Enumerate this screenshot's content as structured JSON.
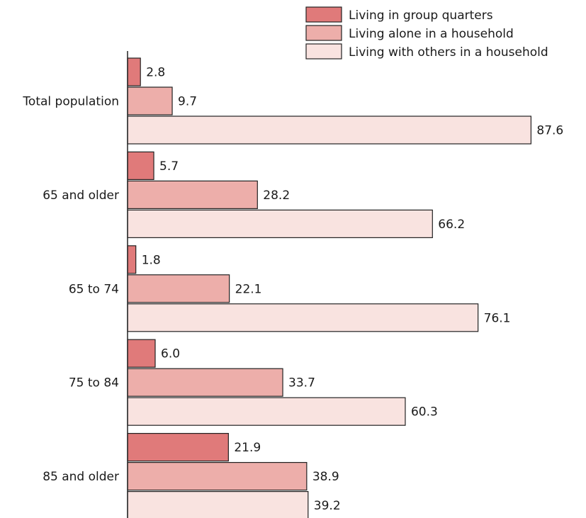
{
  "chart_data": {
    "type": "bar",
    "orientation": "horizontal",
    "categories": [
      "Total population",
      "65 and older",
      "65 to 74",
      "75 to 84",
      "85 and older"
    ],
    "series": [
      {
        "name": "Living in group quarters",
        "values": [
          2.8,
          5.7,
          1.8,
          6.0,
          21.9
        ],
        "value_labels": [
          "2.8",
          "5.7",
          "1.8",
          "6.0",
          "21.9"
        ],
        "color": "#e07a7a"
      },
      {
        "name": "Living alone in a household",
        "values": [
          9.7,
          28.2,
          22.1,
          33.7,
          38.9
        ],
        "value_labels": [
          "9.7",
          "28.2",
          "22.1",
          "33.7",
          "38.9"
        ],
        "color": "#edaeaa"
      },
      {
        "name": "Living with others in a household",
        "values": [
          87.6,
          66.2,
          76.1,
          60.3,
          39.2
        ],
        "value_labels": [
          "87.6",
          "66.2",
          "76.1",
          "60.3",
          "39.2"
        ],
        "color": "#f9e3e0"
      }
    ],
    "xlim": [
      0,
      100
    ],
    "grid": false,
    "legend_position": "top-right",
    "bar_outline_color": "#222222",
    "axis_color": "#222222"
  }
}
